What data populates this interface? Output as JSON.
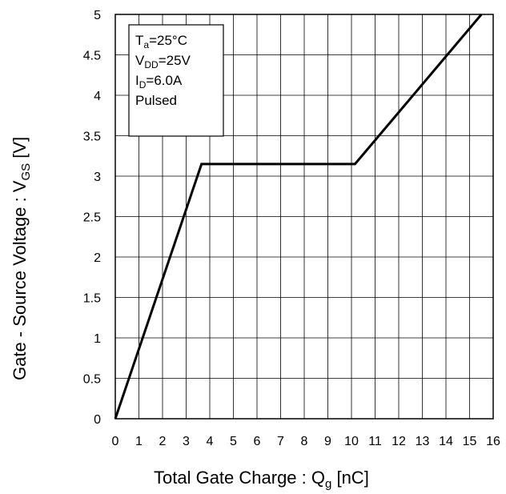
{
  "chart_data": {
    "type": "line",
    "title": "",
    "xlabel": {
      "main": "Total Gate Charge : Q",
      "sub": "g",
      "unit": " [nC]"
    },
    "ylabel": {
      "main": "Gate - Source Voltage : V",
      "sub": "GS",
      "unit": " [V]"
    },
    "xlim": [
      0,
      16
    ],
    "ylim": [
      0,
      5
    ],
    "x_ticks": [
      0,
      1,
      2,
      3,
      4,
      5,
      6,
      7,
      8,
      9,
      10,
      11,
      12,
      13,
      14,
      15,
      16
    ],
    "y_ticks": [
      0,
      0.5,
      1,
      1.5,
      2,
      2.5,
      3,
      3.5,
      4,
      4.5,
      5
    ],
    "grid": true,
    "series": [
      {
        "x": [
          0,
          3.65,
          10.15,
          15.5
        ],
        "y": [
          0,
          3.15,
          3.15,
          5.0
        ]
      }
    ],
    "legend_placement": "top-left",
    "conditions": [
      {
        "main": "T",
        "sub": "a",
        "rest": "=25°C"
      },
      {
        "main": "V",
        "sub": "DD",
        "rest": "=25V"
      },
      {
        "main": "I",
        "sub": "D",
        "rest": "=6.0A"
      },
      {
        "main": "Pulsed",
        "sub": "",
        "rest": ""
      }
    ]
  }
}
